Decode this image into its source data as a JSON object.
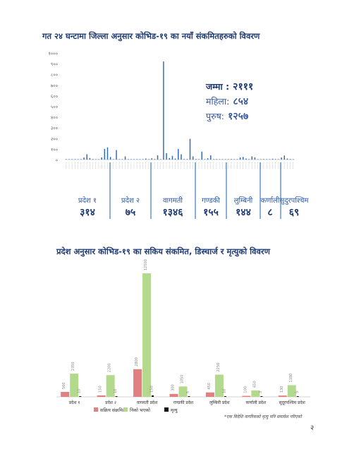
{
  "chart_data": [
    {
      "type": "bar",
      "title": "गत २४ घन्टामा जिल्ला अनुसार कोभिड-१९ का नयाँ संकमितहरुको विवरण",
      "yticks": [
        "०",
        "१००",
        "२००",
        "३००",
        "४००",
        "५००",
        "६००",
        "७००",
        "८००",
        "९००",
        "१०००"
      ],
      "ylim": [
        0,
        1000
      ],
      "values": [
        0,
        0,
        0,
        0,
        0,
        0,
        20,
        50,
        15,
        5,
        0,
        0,
        20,
        100,
        115,
        25,
        0,
        90,
        0,
        0,
        30,
        0,
        0,
        0,
        0,
        0,
        0,
        10,
        0,
        12,
        5,
        40,
        0,
        920,
        60,
        15,
        35,
        10,
        100,
        50,
        5,
        5,
        195,
        30,
        5,
        0,
        75,
        0,
        12,
        40,
        5,
        5,
        0,
        0,
        2,
        0,
        5,
        3,
        0,
        20,
        25,
        10,
        5,
        30,
        20,
        3,
        0,
        5,
        0,
        2,
        8,
        5,
        0,
        20,
        38,
        10,
        5,
        0
      ]
    },
    {
      "type": "bar",
      "title": "प्रदेश अनुसार कोभिड-१९ का सकिय संकमित, डिस्चार्ज र मृत्युको विवरण",
      "categories": [
        "प्रदेश १",
        "प्रदेश २",
        "वागमती प्रदेश",
        "गण्डकी प्रदेश",
        "लुम्बिनी प्रदेश",
        "कर्णाली प्रदेश",
        "सुदूरपश्चिम प्रदेश"
      ],
      "ylim": [
        0,
        13000
      ],
      "series": [
        {
          "name": "सक्रिय संक्रमित",
          "color": "#e08080",
          "values": [
            500,
            150,
            2800,
            300,
            450,
            100,
            130
          ]
        },
        {
          "name": "निको भएको",
          "color": "#b3d98c",
          "values": [
            2350,
            2200,
            12500,
            1050,
            2250,
            650,
            1180
          ]
        },
        {
          "name": "मृत्यु",
          "color": "#111111",
          "values": [
            10,
            10,
            150,
            5,
            10,
            3,
            5
          ]
        }
      ]
    }
  ],
  "summary": {
    "total_label": "जम्मा :",
    "total_value": "२१११",
    "female_label": "महिला:",
    "female_value": "८५४",
    "male_label": "पुरुष:",
    "male_value": "१२५७"
  },
  "provinces": [
    {
      "name": "प्रदेश १",
      "value": "३१४"
    },
    {
      "name": "प्रदेश २",
      "value": "७५"
    },
    {
      "name": "वागमती",
      "value": "१३४६"
    },
    {
      "name": "गण्डकी",
      "value": "१५५"
    },
    {
      "name": "लुम्बिनी",
      "value": "१४४"
    },
    {
      "name": "कर्णाली",
      "value": "८"
    },
    {
      "name": "सुदुरपश्चिम",
      "value": "६९"
    }
  ],
  "footnote": "*एक विदेशि नागरिकको मृत्यु पनि समावेश गरिएको",
  "page_number": "२",
  "colors": {
    "bar_blue": "#2e6bb5",
    "title": "#1f3b73",
    "divider": "#3f7cc8"
  }
}
